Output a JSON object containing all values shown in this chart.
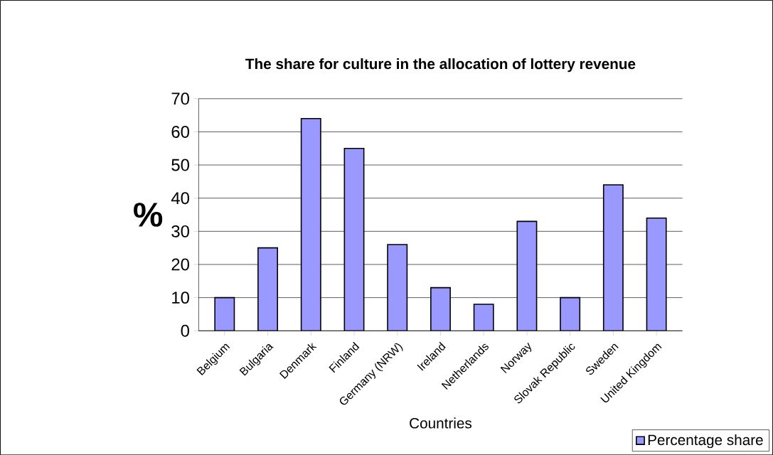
{
  "chart_data": {
    "type": "bar",
    "title": "The share for culture in the allocation of lottery revenue",
    "xlabel": "Countries",
    "ylabel": "%",
    "categories": [
      "Belgium",
      "Bulgaria",
      "Denmark",
      "Finland",
      "Germany (NRW)",
      "Ireland",
      "Netherlands",
      "Norway",
      "Slovak Republic",
      "Sweden",
      "United Kingdom"
    ],
    "series": [
      {
        "name": "Percentage share",
        "color": "#9999ff",
        "values": [
          10,
          25,
          64,
          55,
          26,
          13,
          8,
          33,
          10,
          44,
          34
        ]
      }
    ],
    "ylim": [
      0,
      70
    ],
    "yticks": [
      0,
      10,
      20,
      30,
      40,
      50,
      60,
      70
    ],
    "grid": "y",
    "legend": "bottom right"
  }
}
